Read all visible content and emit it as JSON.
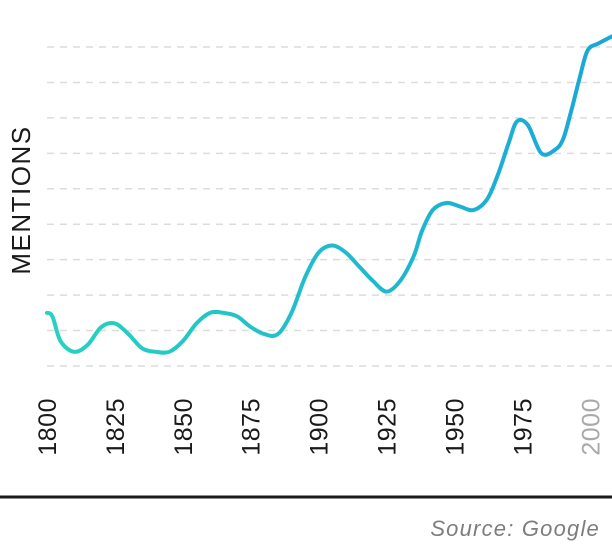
{
  "chart_data": {
    "type": "line",
    "ylabel": "MENTIONS",
    "xlabel": "",
    "title": "",
    "source": "Source: Google",
    "x_ticks": [
      1800,
      1825,
      1850,
      1875,
      1900,
      1925,
      1950,
      1975,
      2000
    ],
    "muted_ticks": [
      2000
    ],
    "xlim": [
      1800,
      2008
    ],
    "ylim": [
      0,
      9
    ],
    "grid": "horizontal dashed",
    "gradient_colors": [
      "#26d3c0",
      "#1aa6d8"
    ],
    "series": [
      {
        "x": [
          1800,
          1802,
          1805,
          1810,
          1815,
          1820,
          1825,
          1830,
          1835,
          1840,
          1845,
          1850,
          1855,
          1860,
          1865,
          1870,
          1875,
          1880,
          1885,
          1890,
          1895,
          1900,
          1905,
          1910,
          1915,
          1920,
          1925,
          1930,
          1935,
          1938,
          1942,
          1947,
          1952,
          1957,
          1962,
          1966,
          1970,
          1973,
          1977,
          1982,
          1987,
          1990,
          1993,
          1996,
          1999,
          2003,
          2008
        ],
        "y": [
          1.5,
          1.4,
          0.7,
          0.4,
          0.6,
          1.1,
          1.2,
          0.9,
          0.5,
          0.4,
          0.4,
          0.7,
          1.2,
          1.5,
          1.5,
          1.4,
          1.1,
          0.9,
          0.9,
          1.5,
          2.5,
          3.2,
          3.4,
          3.2,
          2.8,
          2.4,
          2.1,
          2.4,
          3.1,
          3.8,
          4.4,
          4.6,
          4.5,
          4.4,
          4.7,
          5.4,
          6.3,
          6.9,
          6.8,
          6.0,
          6.1,
          6.4,
          7.2,
          8.1,
          8.9,
          9.1,
          9.3
        ]
      }
    ]
  }
}
